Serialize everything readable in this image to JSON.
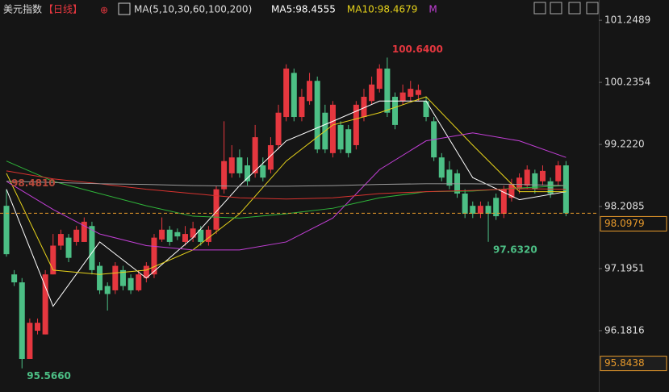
{
  "chart_data": {
    "type": "candlestick",
    "title": "美元指数",
    "period": "【日线】",
    "period_icon": "⊕",
    "ma_caption": "MA(5,10,30,60,100,200)",
    "ylim": [
      95.18,
      101.58
    ],
    "yticks": [
      101.2489,
      100.2354,
      {
        "value": 99.222,
        "label": "99.2220"
      },
      98.2085,
      97.1951,
      96.1816
    ],
    "up_color": "#e5373f",
    "down_color": "#4cbf85",
    "ohlc": {
      "open": [
        98.22,
        97.1,
        96.97,
        95.72,
        96.18,
        96.12,
        97.1,
        97.57,
        97.7,
        97.63,
        97.63,
        97.89,
        97.24,
        96.91,
        96.84,
        97.17,
        97.04,
        96.84,
        97.04,
        97.1,
        97.67,
        97.83,
        97.79,
        97.63,
        97.7,
        97.83,
        97.63,
        97.83,
        98.49,
        98.75,
        99.01,
        98.88,
        98.75,
        98.88,
        98.81,
        99.21,
        99.67,
        100.39,
        99.67,
        99.93,
        100.26,
        99.74,
        99.08,
        99.54,
        99.47,
        99.21,
        99.67,
        99.93,
        100.13,
        100.46,
        100.0,
        99.93,
        100.0,
        100.03,
        99.93,
        99.6,
        99.01,
        98.81,
        98.75,
        98.42,
        98.22,
        98.09,
        98.22,
        98.35,
        98.09,
        98.35,
        98.49,
        98.55,
        98.75,
        98.62,
        98.62,
        98.62,
        98.88
      ],
      "high": [
        98.49,
        97.17,
        97.04,
        96.38,
        96.38,
        97.17,
        97.76,
        97.83,
        97.76,
        97.89,
        98.03,
        97.96,
        97.3,
        96.97,
        97.3,
        97.24,
        97.1,
        97.17,
        97.3,
        97.76,
        98.03,
        97.89,
        97.85,
        97.89,
        97.96,
        97.89,
        97.89,
        98.55,
        99.6,
        99.21,
        99.14,
        99.01,
        99.54,
        99.01,
        99.34,
        99.87,
        100.53,
        100.46,
        100.13,
        100.39,
        100.33,
        99.87,
        99.93,
        99.6,
        99.54,
        99.93,
        100.13,
        100.33,
        100.53,
        100.64,
        100.07,
        100.2,
        100.26,
        100.2,
        100.0,
        99.67,
        99.08,
        98.95,
        98.81,
        98.49,
        98.29,
        98.29,
        98.29,
        98.42,
        98.55,
        98.66,
        98.75,
        98.88,
        98.81,
        98.88,
        98.68,
        98.95,
        98.95
      ],
      "low": [
        97.39,
        96.91,
        95.566,
        95.72,
        96.12,
        96.12,
        97.1,
        97.5,
        97.3,
        97.57,
        97.63,
        97.1,
        96.78,
        96.51,
        96.78,
        96.84,
        96.78,
        96.82,
        96.97,
        97.04,
        97.63,
        97.57,
        97.66,
        97.57,
        97.63,
        97.57,
        97.57,
        97.76,
        98.42,
        98.68,
        98.68,
        98.55,
        98.68,
        98.62,
        98.75,
        99.14,
        99.6,
        99.6,
        99.6,
        99.87,
        99.08,
        99.08,
        99.01,
        99.08,
        99.01,
        99.14,
        99.6,
        99.87,
        100.07,
        99.67,
        99.47,
        99.87,
        99.93,
        99.93,
        99.6,
        98.95,
        98.62,
        98.49,
        98.35,
        98.02,
        98.02,
        98.02,
        97.632,
        97.99,
        98.02,
        98.29,
        98.42,
        98.49,
        98.42,
        98.55,
        98.35,
        98.55,
        98.05
      ],
      "close": [
        97.43,
        96.97,
        95.72,
        96.31,
        96.31,
        97.1,
        97.57,
        97.76,
        97.37,
        97.83,
        97.96,
        97.17,
        96.84,
        96.78,
        97.24,
        96.91,
        96.84,
        97.1,
        97.24,
        97.7,
        97.83,
        97.63,
        97.72,
        97.76,
        97.85,
        97.63,
        97.83,
        98.49,
        98.95,
        99.01,
        98.75,
        98.62,
        99.34,
        98.68,
        99.21,
        99.74,
        100.46,
        99.67,
        100.0,
        100.26,
        99.14,
        99.14,
        99.87,
        99.14,
        99.08,
        99.87,
        100.0,
        100.2,
        100.46,
        99.74,
        99.54,
        100.07,
        100.13,
        100.11,
        99.67,
        99.01,
        98.68,
        98.55,
        98.42,
        98.09,
        98.09,
        98.22,
        98.09,
        98.05,
        98.49,
        98.58,
        98.68,
        98.81,
        98.49,
        98.79,
        98.42,
        98.88,
        98.0979
      ]
    },
    "ma_x": [
      0,
      6,
      12,
      18,
      24,
      30,
      36,
      42,
      48,
      54,
      60,
      66,
      72
    ],
    "ma_lines": [
      {
        "color": "#ffffff",
        "label": "MA5:98.4555",
        "values": [
          98.49,
          96.58,
          97.63,
          97.04,
          97.7,
          98.55,
          99.28,
          99.6,
          99.93,
          99.93,
          98.68,
          98.32,
          98.45
        ]
      },
      {
        "color": "#e6d21a",
        "label": "MA10:98.4679",
        "values": [
          98.75,
          97.17,
          97.1,
          97.17,
          97.5,
          98.09,
          98.95,
          99.54,
          99.74,
          100.0,
          99.21,
          98.45,
          98.45
        ]
      },
      {
        "color": "#c23fd6",
        "label": "M",
        "values": [
          98.62,
          98.16,
          97.76,
          97.57,
          97.5,
          97.5,
          97.63,
          98.02,
          98.81,
          99.28,
          99.41,
          99.28,
          99.01
        ]
      },
      {
        "color": "#2fb53a",
        "values": [
          98.95,
          98.62,
          98.42,
          98.22,
          98.05,
          98.02,
          98.09,
          98.18,
          98.35,
          98.45,
          98.46,
          98.51,
          98.55
        ]
      },
      {
        "color": "#d8332f",
        "values": [
          98.79,
          98.66,
          98.58,
          98.49,
          98.42,
          98.35,
          98.33,
          98.35,
          98.42,
          98.45,
          98.47,
          98.5,
          98.49
        ]
      },
      {
        "color": "#9a9a9a",
        "values": [
          98.62,
          98.6,
          98.58,
          98.57,
          98.55,
          98.54,
          98.54,
          98.55,
          98.57,
          98.58,
          98.58,
          98.57,
          98.55
        ]
      }
    ],
    "annotations": [
      {
        "label": "100.6400",
        "value": 100.64,
        "index": 49,
        "color": "#e5373f"
      },
      {
        "label": "97.6320",
        "value": 97.632,
        "index": 62,
        "color": "#4cbf85"
      },
      {
        "label": "95.5660",
        "value": 95.566,
        "index": 2,
        "color": "#4cbf85"
      },
      {
        "label": "98.4810",
        "value": 98.481,
        "index": 0,
        "color": "#b84a3c"
      }
    ],
    "price_tags": [
      {
        "label": "98.0979",
        "value": 98.0979,
        "dashed": true
      },
      {
        "label": "95.8438",
        "value": 95.8438,
        "dashed": false
      }
    ]
  }
}
